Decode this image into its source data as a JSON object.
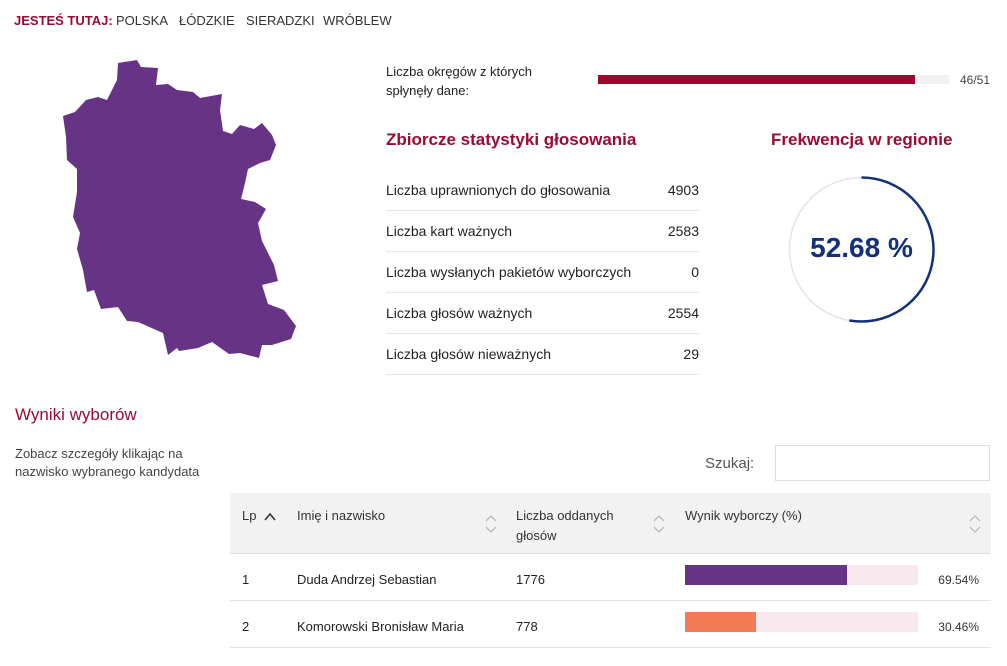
{
  "breadcrumb": {
    "label": "JESTEŚ TUTAJ:",
    "items": [
      "POLSKA",
      "ŁÓDZKIE",
      "SIERADZKI",
      "WRÓBLEW"
    ]
  },
  "map": {
    "fill_color": "#663385"
  },
  "districts": {
    "label": "Liczba okręgów z których spłynęły dane:",
    "received": 46,
    "total": 51,
    "count_text": "46/51",
    "bar_color": "#a0052f"
  },
  "stats": {
    "title": "Zbiorcze statystyki głosowania",
    "rows": [
      {
        "label": "Liczba uprawnionych do głosowania",
        "value": "4903"
      },
      {
        "label": "Liczba kart ważnych",
        "value": "2583"
      },
      {
        "label": "Liczba wysłanych pakietów wyborczych",
        "value": "0"
      },
      {
        "label": "Liczba głosów ważnych",
        "value": "2554"
      },
      {
        "label": "Liczba głosów nieważnych",
        "value": "29"
      }
    ]
  },
  "turnout": {
    "title": "Frekwencja w regionie",
    "value": 52.68,
    "display": "52.68 %",
    "ring_color": "#13307a"
  },
  "results": {
    "title": "Wyniki wyborów",
    "hint": "Zobacz szczegóły klikając na nazwisko wybranego kandydata",
    "search_label": "Szukaj:",
    "search_value": "",
    "columns": {
      "lp": "Lp",
      "name": "Imię i nazwisko",
      "votes": "Liczba oddanych głosów",
      "result": "Wynik wyborczy (%)"
    },
    "rows": [
      {
        "lp": "1",
        "name": "Duda Andrzej Sebastian",
        "votes": "1776",
        "percent": 69.54,
        "percent_text": "69.54%",
        "color": "#663385"
      },
      {
        "lp": "2",
        "name": "Komorowski Bronisław Maria",
        "votes": "778",
        "percent": 30.46,
        "percent_text": "30.46%",
        "color": "#f27c54"
      }
    ]
  }
}
